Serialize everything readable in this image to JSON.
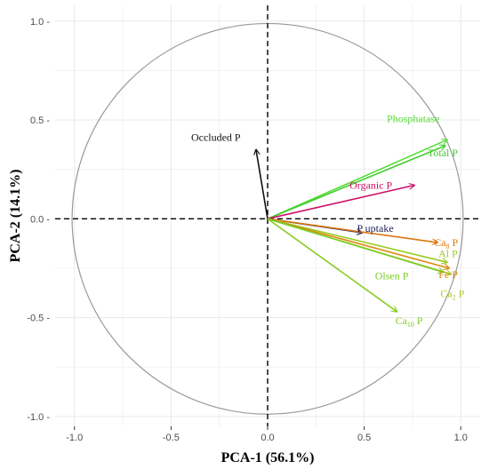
{
  "chart_data": {
    "type": "scatter",
    "subtype": "pca-biplot",
    "xlabel": "PCA-1 (56.1%)",
    "ylabel": "PCA-2 (14.1%)",
    "xlim": [
      -1.1,
      1.1
    ],
    "ylim": [
      -1.05,
      1.08
    ],
    "x_ticks": [
      -1.0,
      -0.5,
      0.0,
      0.5,
      1.0
    ],
    "y_ticks": [
      -1.0,
      -0.5,
      0.0,
      0.5,
      1.0
    ],
    "x_tick_labels": [
      "-1.0",
      "-0.5",
      "0.0",
      "0.5",
      "1.0"
    ],
    "y_tick_labels": [
      "-1.0 -",
      "-0.5 -",
      "0.0 -",
      "0.5 -",
      "1.0 -"
    ],
    "grid": true,
    "unit_circle": true,
    "reference_lines": {
      "x": 0,
      "y": 0,
      "style": "dashed"
    },
    "vectors": [
      {
        "name": "Phosphatase",
        "x": 0.93,
        "y": 0.4,
        "color": "#55dd33",
        "label": "Phosphatase"
      },
      {
        "name": "Total P",
        "x": 0.92,
        "y": 0.37,
        "color": "#44cc33",
        "label": "Total P"
      },
      {
        "name": "Organic P",
        "x": 0.76,
        "y": 0.17,
        "color": "#cc1166",
        "label": "Organic P"
      },
      {
        "name": "Occluded P",
        "x": -0.06,
        "y": 0.35,
        "color": "#111111",
        "label": "Occluded P"
      },
      {
        "name": "P uptake",
        "x": 0.49,
        "y": -0.07,
        "color": "#222255",
        "label": "P uptake"
      },
      {
        "name": "Ca8 P",
        "x": 0.88,
        "y": -0.12,
        "color": "#dd7711",
        "label_main": "Ca",
        "label_sub": "8",
        "label_rest": " P"
      },
      {
        "name": "Al P",
        "x": 0.93,
        "y": -0.22,
        "color": "#99cc22",
        "label": "Al P"
      },
      {
        "name": "Fe P",
        "x": 0.94,
        "y": -0.25,
        "color": "#dd8811",
        "label": "Fe P"
      },
      {
        "name": "Ca2 P",
        "x": 0.95,
        "y": -0.28,
        "color": "#aacc22",
        "label_main": "Ca",
        "label_sub": "2",
        "label_rest": " P"
      },
      {
        "name": "Olsen P",
        "x": 0.91,
        "y": -0.27,
        "color": "#77cc22",
        "label": "Olsen P"
      },
      {
        "name": "Ca10 P",
        "x": 0.67,
        "y": -0.47,
        "color": "#88cc22",
        "label_main": "Ca",
        "label_sub": "10",
        "label_rest": " P"
      }
    ],
    "colors": {
      "circle": "#999999",
      "grid": "#ebebeb",
      "axis_lines": "#000000"
    }
  }
}
